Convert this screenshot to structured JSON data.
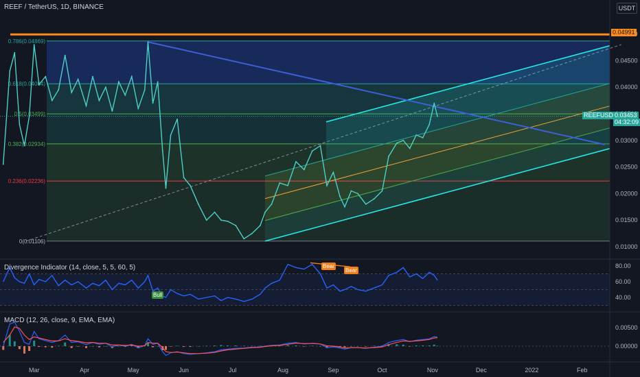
{
  "header": {
    "symbol_line": "REEF / TetherUS, 1D, BINANCE",
    "currency_button": "USDT"
  },
  "colors": {
    "background": "#131722",
    "price_line": "#4dd0c8",
    "trendline": "#3d5fd9",
    "resistance": "#ff8c1a",
    "channel": "#26e6e6",
    "fib_red": "#f23645",
    "fib_green": "#4caf50",
    "fib_teal": "#26a69a",
    "fib_blue": "#2962ff",
    "div_line": "#2962ff",
    "macd_line": "#2962ff",
    "signal_line": "#ff5252",
    "bear_badge": "#ef7f1a",
    "bull_badge": "#388e3c"
  },
  "price_axis": {
    "labels": [
      "0.05000",
      "0.04500",
      "0.04000",
      "0.03500",
      "0.03000",
      "0.02500",
      "0.02000",
      "0.01500",
      "0.01000"
    ],
    "resistance_tag": "0.04991",
    "symbol_tag": "REEFUSDT",
    "last_price": "0.03453",
    "countdown": "04:32:09"
  },
  "time_axis": {
    "labels": [
      "Mar",
      "Apr",
      "May",
      "Jun",
      "Jul",
      "Aug",
      "Sep",
      "Oct",
      "Nov",
      "Dec",
      "2022",
      "Feb"
    ]
  },
  "fib_levels": [
    {
      "label": "0.786(0.04869)",
      "value": 0.04869
    },
    {
      "label": "0.618(0.04064)",
      "value": 0.04064
    },
    {
      "label": "0.5(0.03499)",
      "value": 0.03499
    },
    {
      "label": "0.382(0.02934)",
      "value": 0.02934
    },
    {
      "label": "0.236(0.02236)",
      "value": 0.02236
    },
    {
      "label": "0(0.01106)",
      "value": 0.01106
    }
  ],
  "divergence": {
    "title": "Divergence Indicator (14, close, 5, 5, 60, 5)",
    "axis_labels": [
      "80.00",
      "60.00",
      "40.00"
    ],
    "bear_label": "Bear",
    "bull_label": "Bull"
  },
  "macd": {
    "title": "MACD (12, 26, close, 9, EMA, EMA)",
    "axis_labels": [
      "0.00500",
      "0.00000"
    ]
  },
  "chart_data": {
    "type": "line",
    "title": "REEF / TetherUS, 1D, BINANCE",
    "xlabel": "",
    "ylabel": "",
    "ylim": [
      0.01,
      0.0515
    ],
    "grid": false,
    "x": [
      "2021-02-10",
      "2021-02-14",
      "2021-02-17",
      "2021-02-20",
      "2021-02-23",
      "2021-02-26",
      "2021-03-01",
      "2021-03-04",
      "2021-03-08",
      "2021-03-12",
      "2021-03-16",
      "2021-03-20",
      "2021-03-24",
      "2021-03-28",
      "2021-04-02",
      "2021-04-06",
      "2021-04-10",
      "2021-04-14",
      "2021-04-18",
      "2021-04-22",
      "2021-04-26",
      "2021-04-30",
      "2021-05-04",
      "2021-05-08",
      "2021-05-10",
      "2021-05-13",
      "2021-05-16",
      "2021-05-19",
      "2021-05-21",
      "2021-05-24",
      "2021-05-28",
      "2021-06-01",
      "2021-06-05",
      "2021-06-10",
      "2021-06-15",
      "2021-06-20",
      "2021-06-24",
      "2021-06-28",
      "2021-07-03",
      "2021-07-08",
      "2021-07-13",
      "2021-07-18",
      "2021-07-21",
      "2021-07-25",
      "2021-07-30",
      "2021-08-04",
      "2021-08-09",
      "2021-08-14",
      "2021-08-19",
      "2021-08-24",
      "2021-08-28",
      "2021-09-01",
      "2021-09-05",
      "2021-09-08",
      "2021-09-12",
      "2021-09-16",
      "2021-09-21",
      "2021-09-26",
      "2021-10-01",
      "2021-10-05",
      "2021-10-10",
      "2021-10-14",
      "2021-10-18",
      "2021-10-22",
      "2021-10-26",
      "2021-10-30",
      "2021-11-02",
      "2021-11-04"
    ],
    "series": [
      {
        "values": [
          0.0255,
          0.043,
          0.0465,
          0.033,
          0.029,
          0.0345,
          0.048,
          0.0405,
          0.042,
          0.0375,
          0.0395,
          0.046,
          0.039,
          0.0415,
          0.0365,
          0.042,
          0.0375,
          0.04,
          0.0355,
          0.041,
          0.0385,
          0.042,
          0.036,
          0.0395,
          0.0485,
          0.037,
          0.041,
          0.028,
          0.021,
          0.031,
          0.034,
          0.023,
          0.0215,
          0.018,
          0.015,
          0.0165,
          0.015,
          0.0148,
          0.014,
          0.0115,
          0.0125,
          0.014,
          0.0165,
          0.018,
          0.022,
          0.0215,
          0.026,
          0.0245,
          0.028,
          0.029,
          0.0215,
          0.024,
          0.0195,
          0.0175,
          0.0205,
          0.02,
          0.018,
          0.019,
          0.0205,
          0.027,
          0.0295,
          0.03,
          0.0285,
          0.031,
          0.0305,
          0.033,
          0.037,
          0.0345
        ]
      }
    ],
    "annotations": {
      "resistance": 0.04991,
      "trendline": {
        "from": [
          "2021-05-10",
          0.0485
        ],
        "to": [
          "2022-02-15",
          0.0292
        ]
      },
      "fib_dashed": {
        "from": [
          "2021-02-24",
          0.01106
        ],
        "to": [
          "2022-02-25",
          0.048
        ]
      },
      "channel_base": {
        "from": [
          "2021-07-21",
          0.01106
        ],
        "to": [
          "2021-10-05",
          0.0173
        ]
      }
    },
    "divergence_series": {
      "ylim": [
        25,
        90
      ],
      "values": [
        60,
        78,
        65,
        60,
        58,
        70,
        56,
        63,
        60,
        68,
        55,
        62,
        56,
        60,
        52,
        58,
        55,
        62,
        50,
        58,
        56,
        62,
        52,
        60,
        68,
        48,
        52,
        42,
        40,
        50,
        45,
        42,
        44,
        38,
        40,
        42,
        36,
        40,
        38,
        35,
        38,
        44,
        52,
        58,
        62,
        82,
        78,
        76,
        82,
        70,
        52,
        56,
        48,
        50,
        54,
        50,
        48,
        52,
        56,
        68,
        72,
        78,
        66,
        70,
        64,
        72,
        68,
        62
      ]
    },
    "macd_series": {
      "ylim": [
        -0.0025,
        0.0085
      ],
      "macd": [
        0.0,
        0.006,
        0.0065,
        0.004,
        0.001,
        0.0005,
        0.004,
        0.002,
        0.0015,
        0.001,
        0.0015,
        0.003,
        0.001,
        0.0012,
        0.0004,
        0.001,
        0.0005,
        0.0008,
        -0.0002,
        0.0003,
        0.0,
        0.0005,
        -0.0005,
        0.0002,
        0.002,
        0.0005,
        0.0008,
        -0.0015,
        -0.0025,
        -0.0018,
        -0.0015,
        -0.002,
        -0.0022,
        -0.002,
        -0.0018,
        -0.0015,
        -0.001,
        -0.0008,
        -0.0006,
        -0.0005,
        -0.0003,
        -0.0002,
        0.0,
        0.0002,
        0.0003,
        0.0008,
        0.001,
        0.0006,
        0.0008,
        0.0006,
        -0.0004,
        -0.0002,
        -0.0005,
        -0.0008,
        -0.0004,
        -0.0004,
        -0.0006,
        -0.0003,
        0.0,
        0.001,
        0.0015,
        0.0018,
        0.0012,
        0.0016,
        0.0018,
        0.002,
        0.0026,
        0.0024
      ],
      "signal": [
        0.001,
        0.003,
        0.0052,
        0.0048,
        0.003,
        0.0018,
        0.0025,
        0.0022,
        0.0018,
        0.0014,
        0.0014,
        0.002,
        0.0015,
        0.0013,
        0.0009,
        0.001,
        0.0008,
        0.0008,
        0.0003,
        0.0003,
        0.0002,
        0.0003,
        0.0,
        0.0001,
        0.001,
        0.0008,
        0.0008,
        -0.0004,
        -0.0015,
        -0.0017,
        -0.0016,
        -0.0018,
        -0.002,
        -0.002,
        -0.0019,
        -0.0017,
        -0.0013,
        -0.001,
        -0.0008,
        -0.0006,
        -0.0004,
        -0.0003,
        -0.0001,
        0.0001,
        0.0002,
        0.0005,
        0.0008,
        0.0007,
        0.0007,
        0.0006,
        0.0001,
        0.0,
        -0.0002,
        -0.0005,
        -0.0004,
        -0.0004,
        -0.0005,
        -0.0004,
        -0.0002,
        0.0004,
        0.001,
        0.0014,
        0.0013,
        0.0014,
        0.0016,
        0.0018,
        0.0022,
        0.0023
      ]
    }
  }
}
